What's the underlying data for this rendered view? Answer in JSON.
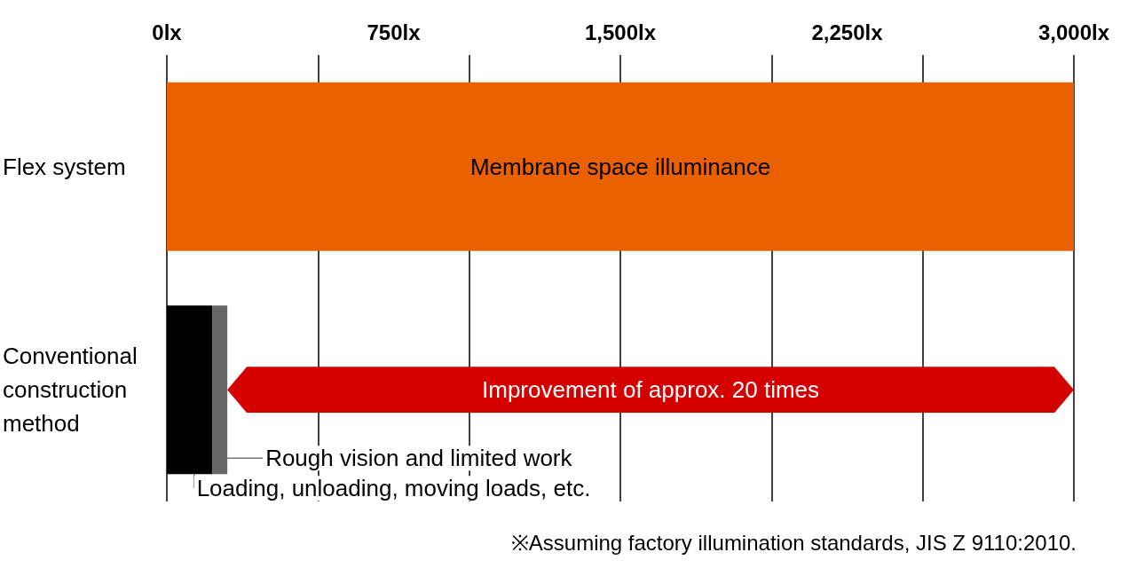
{
  "chart_data": {
    "type": "bar",
    "orientation": "horizontal",
    "stacked": true,
    "categories": [
      "Flex system",
      "Conventional construction method"
    ],
    "series": [
      {
        "name": "Membrane space illuminance",
        "color": "#e86000",
        "values": [
          3000,
          null
        ]
      },
      {
        "name": "Loading, unloading, moving loads, etc.",
        "color": "#000000",
        "values": [
          null,
          150
        ]
      },
      {
        "name": "Rough vision and limited work",
        "color": "#666666",
        "values": [
          null,
          50
        ]
      }
    ],
    "xlim": [
      0,
      3000
    ],
    "xticks": [
      {
        "value": 0,
        "label": "0lx"
      },
      {
        "value": 750,
        "label": "750lx"
      },
      {
        "value": 1500,
        "label": "1,500lx"
      },
      {
        "value": 2250,
        "label": "2,250lx"
      },
      {
        "value": 3000,
        "label": "3,000lx"
      }
    ],
    "grid": "x",
    "legend": false,
    "annotations": [
      "Improvement of approx. 20 times",
      "※Assuming factory illumination standards, JIS Z 9110:2010."
    ]
  }
}
